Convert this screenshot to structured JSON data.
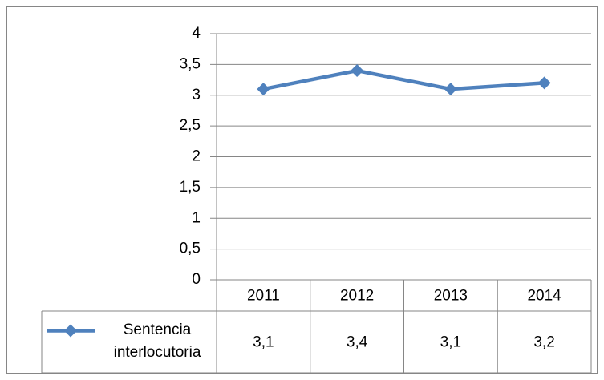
{
  "chart_data": {
    "type": "line",
    "categories": [
      "2011",
      "2012",
      "2013",
      "2014"
    ],
    "series": [
      {
        "name": "Sentencia interlocutoria",
        "color": "#4f81bd",
        "values": [
          3.1,
          3.4,
          3.1,
          3.2
        ],
        "value_labels": [
          "3,1",
          "3,4",
          "3,1",
          "3,2"
        ]
      }
    ],
    "ylim": [
      0,
      4
    ],
    "yticks": [
      0,
      {
        "value": 0.5,
        "label": "0,5"
      },
      1,
      {
        "value": 1.5,
        "label": "1,5"
      },
      2,
      {
        "value": 2.5,
        "label": "2,5"
      },
      3,
      {
        "value": 3.5,
        "label": "3,5"
      },
      4
    ],
    "grid": true
  }
}
